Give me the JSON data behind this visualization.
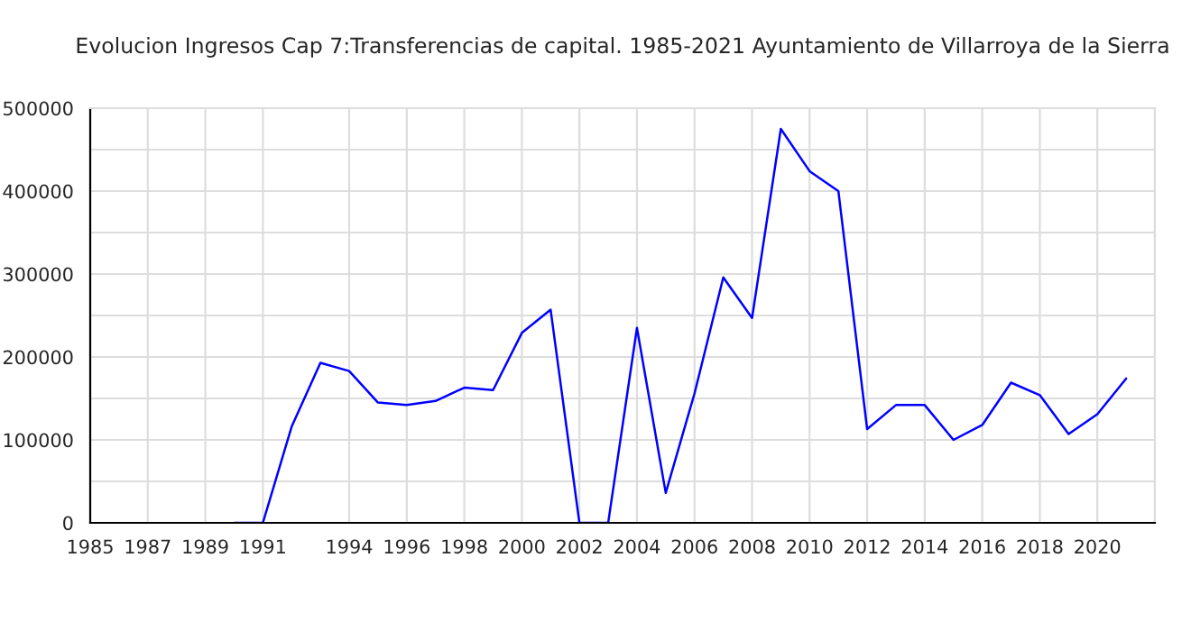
{
  "chart_data": {
    "type": "line",
    "title": "Evolucion Ingresos Cap 7:Transferencias de capital. 1985-2021 Ayuntamiento de Villarroya de la Sierra",
    "x": [
      1990,
      1991,
      1992,
      1993,
      1994,
      1995,
      1996,
      1997,
      1998,
      1999,
      2000,
      2001,
      2002,
      2003,
      2004,
      2005,
      2006,
      2007,
      2008,
      2009,
      2010,
      2011,
      2012,
      2013,
      2014,
      2015,
      2016,
      2017,
      2018,
      2019,
      2020,
      2021
    ],
    "series": [
      {
        "color": "#0000ff",
        "values": [
          0,
          0,
          116000,
          193000,
          183000,
          145000,
          142000,
          147000,
          163000,
          160000,
          229000,
          257000,
          0,
          0,
          235000,
          36000,
          156000,
          296000,
          247000,
          475000,
          424000,
          400000,
          113000,
          142000,
          142000,
          100000,
          118000,
          169000,
          154000,
          107000,
          131000,
          174000
        ]
      }
    ],
    "xlim": [
      1985,
      2022
    ],
    "xticks": [
      1985,
      1987,
      1989,
      1991,
      1994,
      1996,
      1998,
      2000,
      2002,
      2004,
      2006,
      2008,
      2010,
      2012,
      2014,
      2016,
      2018,
      2020,
      {
        "value": 2022,
        "label": null
      }
    ],
    "ylim": [
      0,
      500000
    ],
    "yticks": [
      0,
      {
        "value": 50000,
        "label": null
      },
      100000,
      {
        "value": 150000,
        "label": null
      },
      200000,
      {
        "value": 250000,
        "label": null
      },
      300000,
      {
        "value": 350000,
        "label": null
      },
      400000,
      {
        "value": 450000,
        "label": null
      },
      500000
    ],
    "grid": true,
    "marker": "none",
    "line_style": "solid"
  }
}
